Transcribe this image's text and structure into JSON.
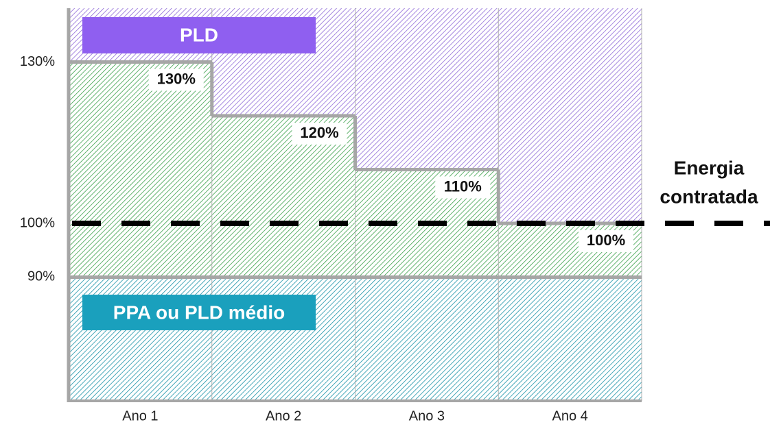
{
  "chart_data": {
    "type": "step",
    "categories": [
      "Ano 1",
      "Ano 2",
      "Ano 3",
      "Ano 4"
    ],
    "values": [
      130,
      120,
      110,
      100
    ],
    "value_labels": [
      "130%",
      "120%",
      "110%",
      "100%"
    ],
    "ylim": [
      67,
      140
    ],
    "yticks": [
      {
        "value": 90,
        "label": "90%"
      },
      {
        "value": 100,
        "label": "100%"
      },
      {
        "value": 130,
        "label": "130%"
      }
    ],
    "upper_label": "PLD",
    "lower_label": "PPA ou PLD médio",
    "annotation": [
      "Energia",
      "contratada"
    ],
    "colors": {
      "upper": "#8f5ff0",
      "middle": "#3aa04a",
      "lower": "#1aa0bd"
    }
  }
}
